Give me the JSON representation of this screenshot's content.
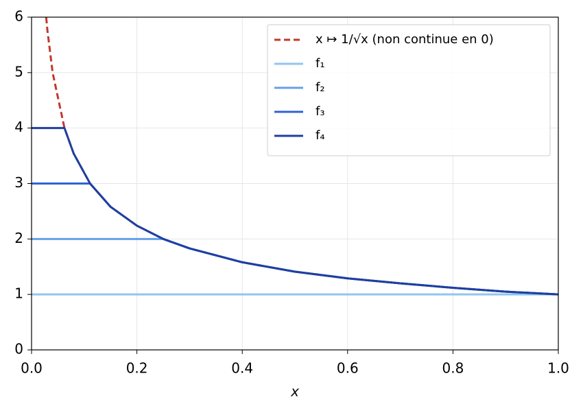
{
  "chart_data": {
    "type": "line",
    "x_label": "x",
    "x": [
      0,
      0.0278,
      0.03,
      0.04,
      0.0625,
      0.08,
      0.1111,
      0.15,
      0.2,
      0.25,
      0.3,
      0.4,
      0.5,
      0.6,
      0.7,
      0.8,
      0.9,
      1.0
    ],
    "series": [
      {
        "name": "x ↦ 1/√x (non continue en 0)",
        "color": "#c0392b",
        "dashed": true,
        "values": [
          null,
          6,
          5.77,
          5,
          4,
          3.54,
          3,
          2.58,
          2.24,
          2,
          1.83,
          1.58,
          1.41,
          1.29,
          1.2,
          1.12,
          1.05,
          1
        ]
      },
      {
        "name": "f₁",
        "color": "#90c4f0",
        "values": [
          1,
          1,
          1,
          1,
          1,
          1,
          1,
          1,
          1,
          1,
          1,
          1,
          1,
          1,
          1,
          1,
          1,
          1
        ]
      },
      {
        "name": "f₂",
        "color": "#64a0ea",
        "values": [
          2,
          2,
          2,
          2,
          2,
          2,
          2,
          2,
          2,
          2,
          1.83,
          1.58,
          1.41,
          1.29,
          1.2,
          1.12,
          1.05,
          1
        ]
      },
      {
        "name": "f₃",
        "color": "#2d63d6",
        "values": [
          3,
          3,
          3,
          3,
          3,
          3,
          3,
          2.58,
          2.24,
          2,
          1.83,
          1.58,
          1.41,
          1.29,
          1.2,
          1.12,
          1.05,
          1
        ]
      },
      {
        "name": "f₄",
        "color": "#1f3fa0",
        "values": [
          4,
          4,
          4,
          4,
          4,
          3.54,
          3,
          2.58,
          2.24,
          2,
          1.83,
          1.58,
          1.41,
          1.29,
          1.2,
          1.12,
          1.05,
          1
        ]
      }
    ],
    "xlim": [
      0,
      1
    ],
    "xticks": [
      {
        "value": 0,
        "label": "0.0"
      },
      {
        "value": 0.2,
        "label": "0.2"
      },
      {
        "value": 0.4,
        "label": "0.4"
      },
      {
        "value": 0.6,
        "label": "0.6"
      },
      {
        "value": 0.8,
        "label": "0.8"
      },
      {
        "value": 1,
        "label": "1.0"
      }
    ],
    "ylim": [
      0,
      6
    ],
    "yticks": [
      0,
      1,
      2,
      3,
      4,
      5,
      6
    ],
    "grid": true,
    "legend": "upper right"
  }
}
